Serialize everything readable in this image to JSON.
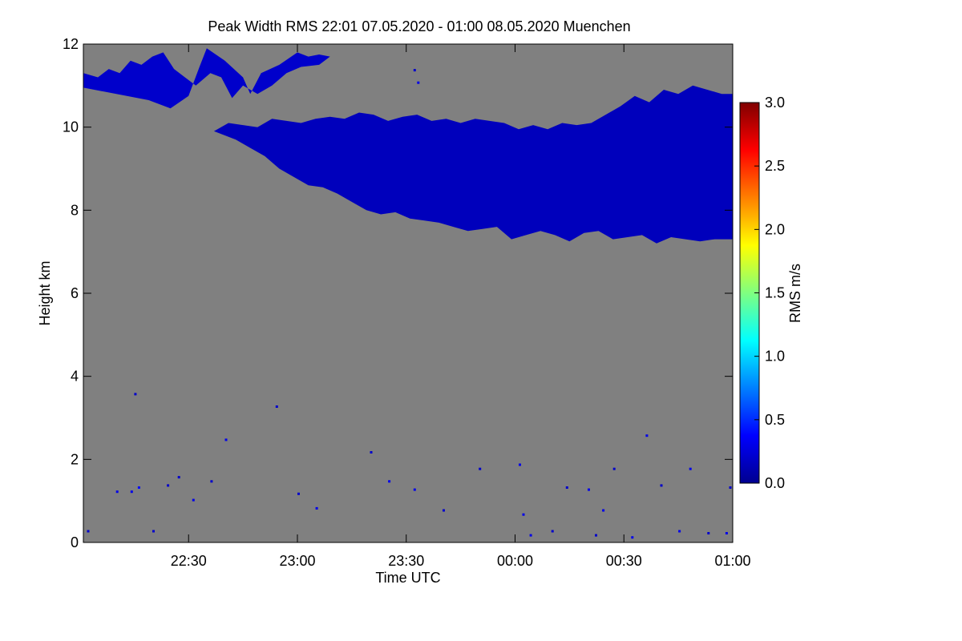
{
  "chart_data": {
    "type": "heatmap",
    "title": "Peak Width RMS   22:01 07.05.2020 - 01:00 08.05.2020 Muenchen",
    "xlabel": "Time UTC",
    "ylabel": "Height km",
    "x_range_minutes": [
      -119,
      60
    ],
    "x_ticks": [
      {
        "label": "22:30",
        "minutes": -90
      },
      {
        "label": "23:00",
        "minutes": -60
      },
      {
        "label": "23:30",
        "minutes": -30
      },
      {
        "label": "00:00",
        "minutes": 0
      },
      {
        "label": "00:30",
        "minutes": 30
      },
      {
        "label": "01:00",
        "minutes": 60
      }
    ],
    "ylim": [
      0,
      12
    ],
    "y_ticks": [
      "0",
      "2",
      "4",
      "6",
      "8",
      "10",
      "12"
    ],
    "background_color": "#808080",
    "colorbar": {
      "label": "RMS m/s",
      "range": [
        0.0,
        3.0
      ],
      "ticks": [
        "0.0",
        "0.5",
        "1.0",
        "1.5",
        "2.0",
        "2.5",
        "3.0"
      ],
      "colormap": "jet"
    },
    "regions": [
      {
        "name": "upper cloud layer",
        "value": 0.2,
        "time_minutes": [
          -119,
          -101,
          -95,
          -90,
          -87,
          -85,
          -80,
          -75,
          -73,
          -70,
          -65,
          -60,
          -57,
          -54,
          -51,
          -54,
          -59,
          -63,
          -67,
          -71,
          -75,
          -78,
          -81,
          -84,
          -88,
          -91,
          -94,
          -97,
          -100,
          -103,
          -106,
          -109,
          -112,
          -115,
          -119
        ],
        "height_km": [
          10.95,
          10.65,
          10.45,
          10.75,
          11.45,
          11.9,
          11.6,
          11.2,
          10.8,
          11.3,
          11.5,
          11.8,
          11.7,
          11.75,
          11.7,
          11.5,
          11.45,
          11.3,
          11.0,
          10.8,
          11.0,
          10.7,
          11.2,
          11.3,
          11.0,
          11.2,
          11.4,
          11.8,
          11.7,
          11.5,
          11.6,
          11.3,
          11.4,
          11.2,
          11.3
        ]
      },
      {
        "name": "main cloud layer",
        "value": 0.15,
        "time_minutes": [
          -83,
          -80,
          -77,
          -73,
          -69,
          -65,
          -61,
          -57,
          -53,
          -49,
          -45,
          -41,
          -37,
          -33,
          -29,
          -25,
          -21,
          -17,
          -13,
          -9,
          -5,
          -1,
          3,
          7,
          11,
          15,
          19,
          23,
          27,
          31,
          35,
          39,
          43,
          47,
          51,
          55,
          60,
          60,
          57,
          53,
          49,
          45,
          41,
          37,
          33,
          29,
          25,
          21,
          17,
          13,
          9,
          5,
          1,
          -3,
          -7,
          -11,
          -15,
          -19,
          -23,
          -27,
          -31,
          -35,
          -39,
          -43,
          -47,
          -51,
          -55,
          -59,
          -63,
          -67,
          -71,
          -75,
          -79,
          -83
        ],
        "height_km": [
          9.9,
          9.8,
          9.7,
          9.5,
          9.3,
          9.0,
          8.8,
          8.6,
          8.55,
          8.4,
          8.2,
          8.0,
          7.9,
          7.95,
          7.8,
          7.75,
          7.7,
          7.6,
          7.5,
          7.55,
          7.6,
          7.3,
          7.4,
          7.5,
          7.4,
          7.25,
          7.45,
          7.5,
          7.3,
          7.35,
          7.4,
          7.2,
          7.35,
          7.3,
          7.25,
          7.3,
          7.3,
          10.8,
          10.8,
          10.9,
          11.0,
          10.8,
          10.9,
          10.6,
          10.75,
          10.5,
          10.3,
          10.1,
          10.05,
          10.1,
          9.95,
          10.05,
          9.95,
          10.1,
          10.15,
          10.2,
          10.1,
          10.2,
          10.15,
          10.3,
          10.25,
          10.15,
          10.3,
          10.35,
          10.2,
          10.25,
          10.2,
          10.1,
          10.15,
          10.2,
          10.0,
          10.05,
          10.1,
          9.9
        ]
      }
    ],
    "speckles": [
      {
        "t": -118,
        "h": 0.3,
        "v": 0.2
      },
      {
        "t": -110,
        "h": 1.25,
        "v": 0.3
      },
      {
        "t": -106,
        "h": 1.25,
        "v": 0.3
      },
      {
        "t": -104,
        "h": 1.35,
        "v": 0.4
      },
      {
        "t": -100,
        "h": 0.3,
        "v": 0.2
      },
      {
        "t": -96,
        "h": 1.4,
        "v": 0.2
      },
      {
        "t": -93,
        "h": 1.6,
        "v": 0.2
      },
      {
        "t": -89,
        "h": 1.05,
        "v": 0.3
      },
      {
        "t": -84,
        "h": 1.5,
        "v": 0.2
      },
      {
        "t": -105,
        "h": 3.6,
        "v": 0.2
      },
      {
        "t": -80,
        "h": 2.5,
        "v": 0.3
      },
      {
        "t": -66,
        "h": 3.3,
        "v": 0.2
      },
      {
        "t": -60,
        "h": 1.2,
        "v": 0.2
      },
      {
        "t": -55,
        "h": 0.85,
        "v": 0.3
      },
      {
        "t": -40,
        "h": 2.2,
        "v": 0.2
      },
      {
        "t": -35,
        "h": 1.5,
        "v": 0.3
      },
      {
        "t": -28,
        "h": 1.3,
        "v": 0.3
      },
      {
        "t": -20,
        "h": 0.8,
        "v": 0.2
      },
      {
        "t": -10,
        "h": 1.8,
        "v": 0.2
      },
      {
        "t": 1,
        "h": 1.9,
        "v": 0.3
      },
      {
        "t": 2,
        "h": 0.7,
        "v": 0.3
      },
      {
        "t": 4,
        "h": 0.2,
        "v": 0.3
      },
      {
        "t": 10,
        "h": 0.3,
        "v": 0.2
      },
      {
        "t": 14,
        "h": 1.35,
        "v": 0.2
      },
      {
        "t": 20,
        "h": 1.3,
        "v": 0.3
      },
      {
        "t": 22,
        "h": 0.2,
        "v": 0.2
      },
      {
        "t": 24,
        "h": 0.8,
        "v": 0.3
      },
      {
        "t": 27,
        "h": 1.8,
        "v": 0.2
      },
      {
        "t": 32,
        "h": 0.15,
        "v": 0.3
      },
      {
        "t": 36,
        "h": 2.6,
        "v": 0.3
      },
      {
        "t": 40,
        "h": 1.4,
        "v": 0.2
      },
      {
        "t": 45,
        "h": 0.3,
        "v": 0.3
      },
      {
        "t": 48,
        "h": 1.8,
        "v": 0.3
      },
      {
        "t": 53,
        "h": 0.25,
        "v": 0.2
      },
      {
        "t": 58,
        "h": 0.25,
        "v": 0.3
      },
      {
        "t": 59,
        "h": 1.35,
        "v": 0.2
      },
      {
        "t": -28,
        "h": 11.4,
        "v": 0.2
      },
      {
        "t": -27,
        "h": 11.1,
        "v": 0.3
      }
    ]
  }
}
